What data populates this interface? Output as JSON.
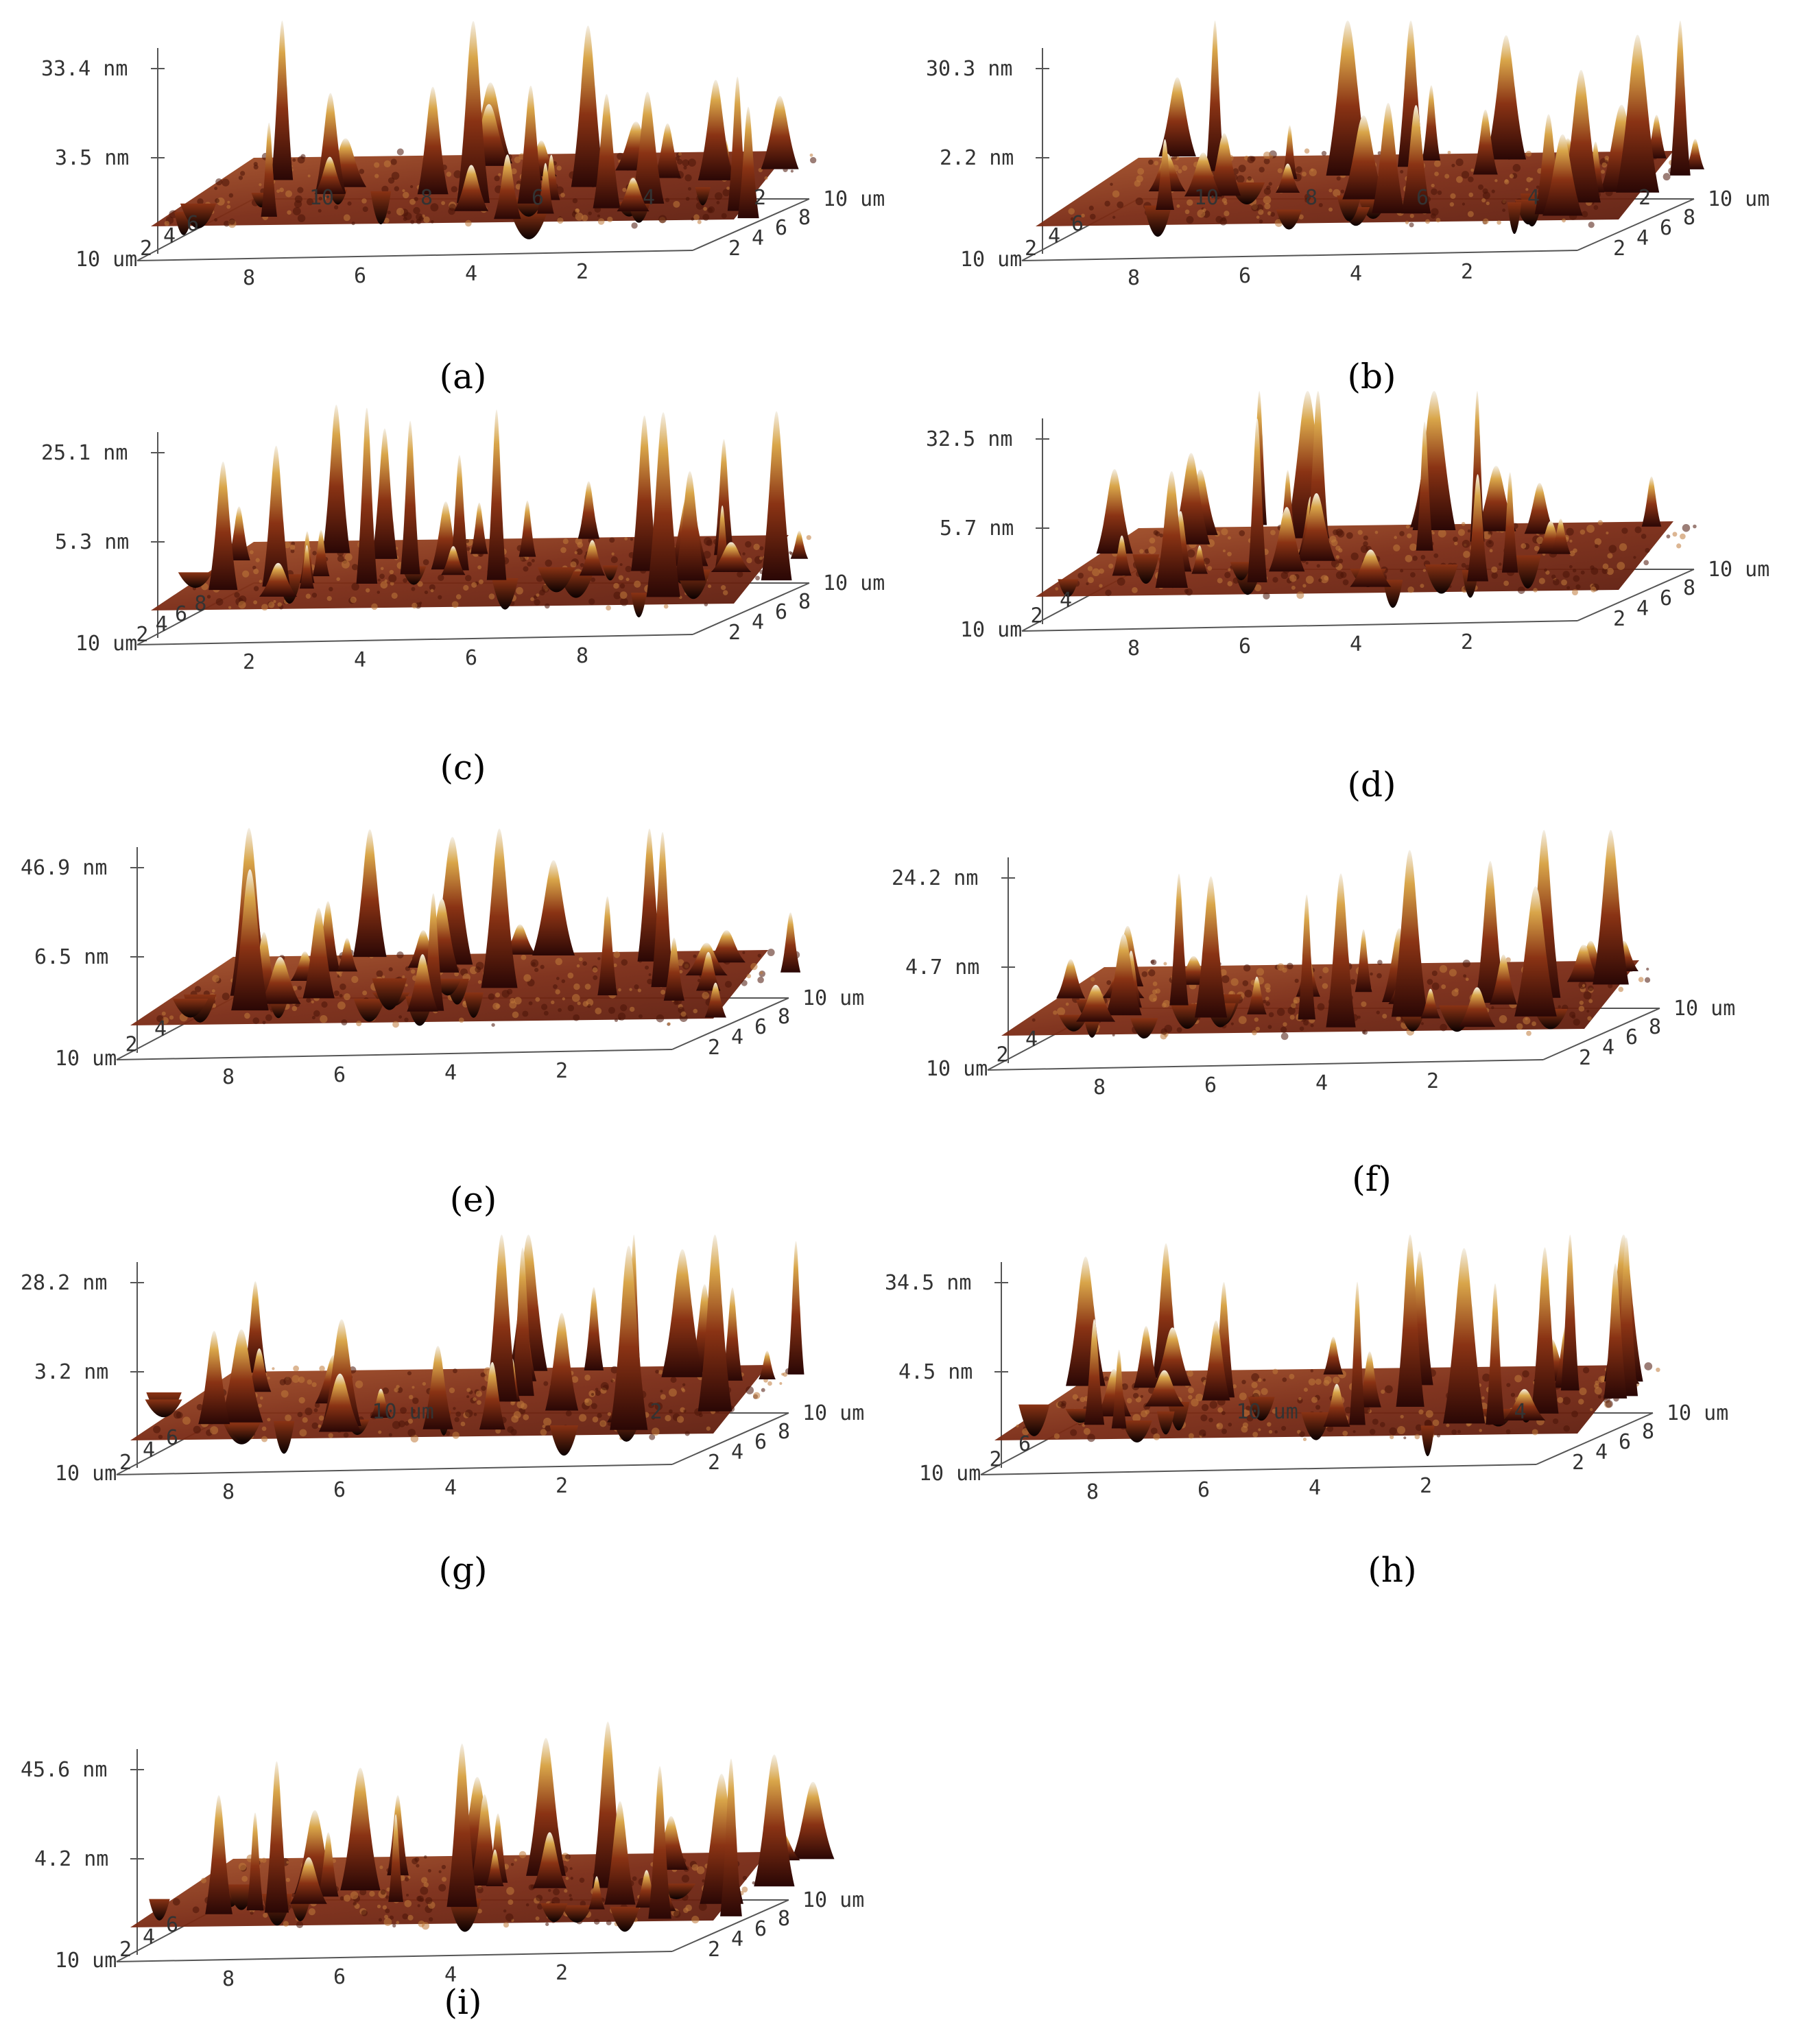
{
  "figure": {
    "colors": {
      "dark": "#2a0705",
      "mid": "#8a3314",
      "light": "#d9a64a",
      "highlight": "#f4f0e8"
    },
    "panels": [
      {
        "id": "a",
        "caption": "(a)",
        "z_top": "33.4 nm",
        "z_mid": "3.5 nm",
        "y_near": "10 um",
        "y_far": "10 um",
        "x_ticks": [
          "8",
          "6",
          "4",
          "2"
        ],
        "d_ticks": [
          "2",
          "4",
          "6",
          "8"
        ],
        "back_ticks": [
          "10",
          "8",
          "6",
          "4",
          "2"
        ],
        "left_ticks": [
          "2",
          "4",
          "6"
        ]
      },
      {
        "id": "b",
        "caption": "(b)",
        "z_top": "30.3 nm",
        "z_mid": "2.2 nm",
        "y_near": "10 um",
        "y_far": "10 um",
        "x_ticks": [
          "8",
          "6",
          "4",
          "2"
        ],
        "d_ticks": [
          "2",
          "4",
          "6",
          "8"
        ],
        "back_ticks": [
          "10",
          "8",
          "6",
          "4",
          "2"
        ],
        "left_ticks": [
          "2",
          "4",
          "6"
        ]
      },
      {
        "id": "c",
        "caption": "(c)",
        "z_top": "25.1 nm",
        "z_mid": "5.3 nm",
        "y_near": "10 um",
        "y_far": "10 um",
        "x_ticks": [
          "2",
          "4",
          "6",
          "8"
        ],
        "d_ticks": [
          "2",
          "4",
          "6",
          "8"
        ],
        "back_ticks": [],
        "left_ticks": [
          "2",
          "4",
          "6",
          "8"
        ]
      },
      {
        "id": "d",
        "caption": "(d)",
        "z_top": "32.5 nm",
        "z_mid": "5.7 nm",
        "y_near": "10 um",
        "y_far": "10 um",
        "x_ticks": [
          "8",
          "6",
          "4",
          "2"
        ],
        "d_ticks": [
          "2",
          "4",
          "6",
          "8"
        ],
        "back_ticks": [],
        "left_ticks": [
          "2",
          "4"
        ]
      },
      {
        "id": "e",
        "caption": "(e)",
        "z_top": "46.9 nm",
        "z_mid": "6.5 nm",
        "y_near": "10 um",
        "y_far": "10 um",
        "x_ticks": [
          "8",
          "6",
          "4",
          "2"
        ],
        "d_ticks": [
          "2",
          "4",
          "6",
          "8"
        ],
        "back_ticks": [],
        "left_ticks": [
          "2",
          "4"
        ]
      },
      {
        "id": "f",
        "caption": "(f)",
        "z_top": "24.2 nm",
        "z_mid": "4.7 nm",
        "y_near": "10 um",
        "y_far": "10 um",
        "x_ticks": [
          "8",
          "6",
          "4",
          "2"
        ],
        "d_ticks": [
          "2",
          "4",
          "6",
          "8"
        ],
        "back_ticks": [],
        "left_ticks": [
          "2",
          "4"
        ]
      },
      {
        "id": "g",
        "caption": "(g)",
        "z_top": "28.2 nm",
        "z_mid": "3.2 nm",
        "y_near": "10 um",
        "y_far": "10 um",
        "x_ticks": [
          "8",
          "6",
          "4",
          "2"
        ],
        "d_ticks": [
          "2",
          "4",
          "6",
          "8"
        ],
        "back_ticks": [
          "10 um",
          "2"
        ],
        "left_ticks": [
          "2",
          "4",
          "6"
        ]
      },
      {
        "id": "h",
        "caption": "(h)",
        "z_top": "34.5 nm",
        "z_mid": "4.5 nm",
        "y_near": "10 um",
        "y_far": "10 um",
        "x_ticks": [
          "8",
          "6",
          "4",
          "2"
        ],
        "d_ticks": [
          "2",
          "4",
          "6",
          "8"
        ],
        "back_ticks": [
          "10 um",
          "4"
        ],
        "left_ticks": [
          "2",
          "6"
        ]
      },
      {
        "id": "i",
        "caption": "(i)",
        "z_top": "45.6 nm",
        "z_mid": "4.2 nm",
        "y_near": "10 um",
        "y_far": "10 um",
        "x_ticks": [
          "8",
          "6",
          "4",
          "2"
        ],
        "d_ticks": [
          "2",
          "4",
          "6",
          "8"
        ],
        "back_ticks": [],
        "left_ticks": [
          "2",
          "4",
          "6"
        ]
      }
    ]
  }
}
